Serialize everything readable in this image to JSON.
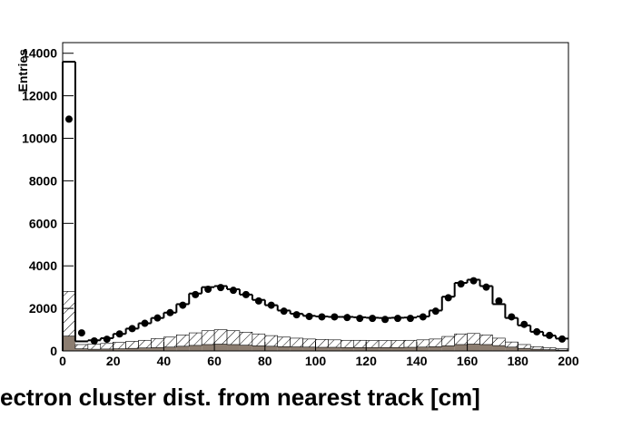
{
  "chart_data": {
    "type": "histogram",
    "x_label": "ectron cluster dist. from nearest track [cm]",
    "y_label": "Entries",
    "bins": [
      0,
      5,
      10,
      15,
      20,
      25,
      30,
      35,
      40,
      45,
      50,
      55,
      60,
      65,
      70,
      75,
      80,
      85,
      90,
      95,
      100,
      105,
      110,
      115,
      120,
      125,
      130,
      135,
      140,
      145,
      150,
      155,
      160,
      165,
      170,
      175,
      180,
      185,
      190,
      195,
      200
    ],
    "series": [
      {
        "style": "fill",
        "color": "#8c7d70",
        "values": [
          700,
          100,
          80,
          90,
          100,
          120,
          140,
          160,
          180,
          220,
          260,
          300,
          320,
          300,
          270,
          240,
          220,
          200,
          190,
          180,
          170,
          170,
          160,
          160,
          160,
          160,
          160,
          170,
          180,
          200,
          240,
          300,
          320,
          300,
          250,
          180,
          120,
          80,
          60,
          40
        ]
      },
      {
        "style": "hatch",
        "color": "#000000",
        "values": [
          2100,
          200,
          240,
          260,
          300,
          330,
          360,
          420,
          470,
          530,
          590,
          650,
          680,
          650,
          610,
          560,
          500,
          450,
          410,
          380,
          370,
          350,
          340,
          340,
          330,
          330,
          330,
          330,
          340,
          360,
          440,
          500,
          500,
          450,
          350,
          240,
          180,
          120,
          90,
          60
        ]
      },
      {
        "style": "step",
        "color": "#000000",
        "values": [
          13600,
          450,
          500,
          600,
          800,
          1050,
          1300,
          1550,
          1800,
          2200,
          2700,
          3000,
          3050,
          2900,
          2650,
          2400,
          2150,
          1900,
          1750,
          1650,
          1620,
          1600,
          1600,
          1580,
          1560,
          1550,
          1560,
          1570,
          1620,
          1900,
          2550,
          3200,
          3350,
          3050,
          2200,
          1550,
          1200,
          900,
          720,
          580
        ]
      },
      {
        "style": "points",
        "color": "#000000",
        "values": [
          10900,
          850,
          470,
          550,
          800,
          1050,
          1300,
          1550,
          1800,
          2150,
          2650,
          2900,
          2980,
          2850,
          2650,
          2350,
          2150,
          1870,
          1700,
          1620,
          1600,
          1600,
          1570,
          1530,
          1530,
          1480,
          1530,
          1530,
          1600,
          1870,
          2500,
          3150,
          3300,
          3000,
          2350,
          1600,
          1250,
          900,
          730,
          560
        ]
      }
    ],
    "xlim": [
      0,
      200
    ],
    "ylim": [
      0,
      14500
    ],
    "xticks": [
      0,
      20,
      40,
      60,
      80,
      100,
      120,
      140,
      160,
      180,
      200
    ],
    "yticks": [
      0,
      2000,
      4000,
      6000,
      8000,
      10000,
      12000,
      14000
    ]
  }
}
